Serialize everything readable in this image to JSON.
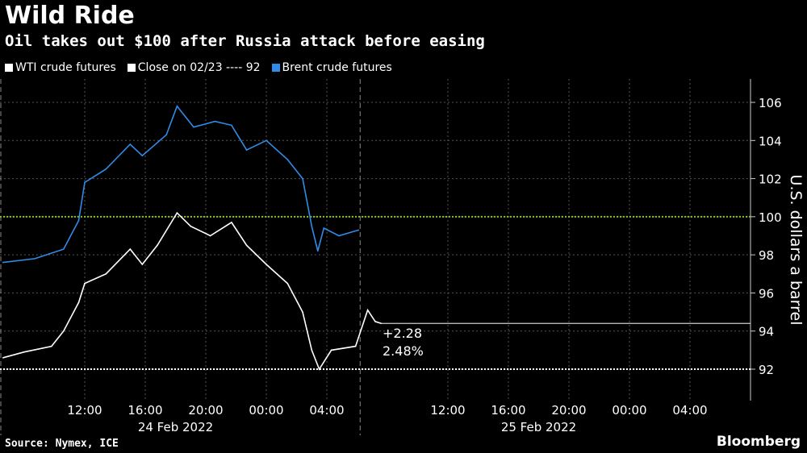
{
  "header": {
    "title": "Wild Ride",
    "subtitle": "Oil takes out $100 after Russia attack before easing"
  },
  "legend": [
    {
      "label": "WTI crude futures",
      "color": "#ffffff"
    },
    {
      "label": "Close on 02/23 ---- 92",
      "color": "#ffffff"
    },
    {
      "label": "Brent crude futures",
      "color": "#2f8ce8"
    }
  ],
  "footer": {
    "source": "Source: Nymex, ICE",
    "logo": "Bloomberg"
  },
  "chart_data": {
    "type": "line",
    "title": "Wild Ride",
    "ylabel": "U.S. dollars a barrel",
    "ylim": [
      90.8,
      107.2
    ],
    "yticks": [
      92,
      94,
      96,
      98,
      100,
      102,
      104,
      106
    ],
    "x_units": "hours since 00:00 24 Feb 2022",
    "xlim": [
      6.4,
      56
    ],
    "xticks": [
      {
        "h": 12,
        "label": "12:00"
      },
      {
        "h": 16,
        "label": "16:00"
      },
      {
        "h": 20,
        "label": "20:00"
      },
      {
        "h": 24,
        "label": "00:00"
      },
      {
        "h": 28,
        "label": "04:00"
      },
      {
        "h": 36,
        "label": "12:00"
      },
      {
        "h": 40,
        "label": "16:00"
      },
      {
        "h": 44,
        "label": "20:00"
      },
      {
        "h": 48,
        "label": "00:00"
      },
      {
        "h": 52,
        "label": "04:00"
      }
    ],
    "date_labels": [
      {
        "h": 18,
        "label": "24 Feb 2022"
      },
      {
        "h": 42,
        "label": "25 Feb 2022"
      }
    ],
    "day_dividers": [
      6.4,
      30.2
    ],
    "reference_lines": [
      {
        "value": 100,
        "color": "#7fbf3f"
      },
      {
        "value": 92,
        "color": "#ffffff",
        "label": "Close on 02/23"
      }
    ],
    "series": [
      {
        "name": "WTI crude futures",
        "color": "#ffffff",
        "points": [
          [
            6.6,
            92.6
          ],
          [
            8,
            92.9
          ],
          [
            9.8,
            93.2
          ],
          [
            10.6,
            94
          ],
          [
            11.6,
            95.5
          ],
          [
            12,
            96.5
          ],
          [
            13.4,
            97
          ],
          [
            15,
            98.3
          ],
          [
            15.8,
            97.5
          ],
          [
            16.8,
            98.5
          ],
          [
            18.1,
            100.2
          ],
          [
            19,
            99.5
          ],
          [
            20.3,
            99
          ],
          [
            21.7,
            99.7
          ],
          [
            22.7,
            98.5
          ],
          [
            24,
            97.5
          ],
          [
            25.4,
            96.5
          ],
          [
            26.4,
            95
          ],
          [
            27,
            93
          ],
          [
            27.5,
            92
          ],
          [
            28.3,
            93
          ],
          [
            29.9,
            93.2
          ],
          [
            30.7,
            95.1
          ],
          [
            31.2,
            94.5
          ],
          [
            31.6,
            94.4
          ]
        ]
      },
      {
        "name": "Brent crude futures",
        "color": "#2f8ce8",
        "points": [
          [
            6.6,
            97.6
          ],
          [
            8.7,
            97.8
          ],
          [
            10.6,
            98.3
          ],
          [
            11.6,
            99.8
          ],
          [
            12,
            101.8
          ],
          [
            13.4,
            102.5
          ],
          [
            15,
            103.8
          ],
          [
            15.8,
            103.2
          ],
          [
            17.4,
            104.3
          ],
          [
            18.1,
            105.8
          ],
          [
            19.2,
            104.7
          ],
          [
            20.6,
            105
          ],
          [
            21.7,
            104.8
          ],
          [
            22.7,
            103.5
          ],
          [
            24,
            104
          ],
          [
            25.4,
            103
          ],
          [
            26.4,
            102
          ],
          [
            27,
            99.5
          ],
          [
            27.4,
            98.2
          ],
          [
            27.8,
            99.4
          ],
          [
            28.8,
            99
          ],
          [
            30.1,
            99.3
          ]
        ]
      }
    ],
    "last_value": 94.4,
    "annotations": {
      "change": "+2.28",
      "pct": "2.48%"
    }
  }
}
